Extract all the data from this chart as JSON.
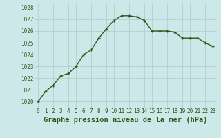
{
  "x": [
    0,
    1,
    2,
    3,
    4,
    5,
    6,
    7,
    8,
    9,
    10,
    11,
    12,
    13,
    14,
    15,
    16,
    17,
    18,
    19,
    20,
    21,
    22,
    23
  ],
  "y": [
    1020.0,
    1020.9,
    1021.4,
    1022.2,
    1022.4,
    1023.0,
    1024.0,
    1024.4,
    1025.4,
    1026.2,
    1026.9,
    1027.3,
    1027.3,
    1027.2,
    1026.9,
    1026.0,
    1026.0,
    1026.0,
    1025.9,
    1025.4,
    1025.4,
    1025.4,
    1025.0,
    1024.7
  ],
  "line_color": "#2d5a1b",
  "marker": "+",
  "marker_size": 3.5,
  "marker_linewidth": 1.0,
  "bg_color": "#cce8e8",
  "grid_color": "#b0c8c8",
  "xlabel": "Graphe pression niveau de la mer (hPa)",
  "ylim": [
    1019.5,
    1028.4
  ],
  "yticks": [
    1020,
    1021,
    1022,
    1023,
    1024,
    1025,
    1026,
    1027,
    1028
  ],
  "xticks": [
    0,
    1,
    2,
    3,
    4,
    5,
    6,
    7,
    8,
    9,
    10,
    11,
    12,
    13,
    14,
    15,
    16,
    17,
    18,
    19,
    20,
    21,
    22,
    23
  ],
  "tick_color": "#2d5a1b",
  "tick_fontsize": 5.5,
  "xlabel_fontsize": 7.5,
  "linewidth": 1.0
}
